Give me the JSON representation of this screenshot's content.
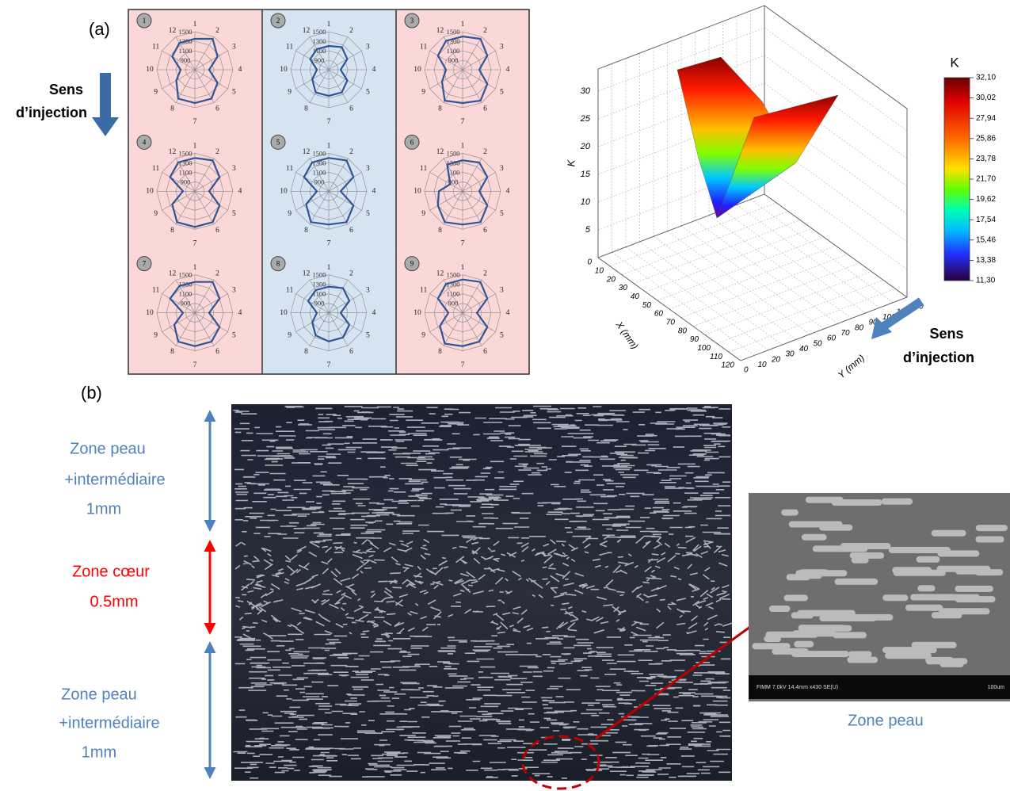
{
  "panel_a": {
    "label": "(a)",
    "injection_note": {
      "line1": "Sens",
      "line2": "d’injection"
    },
    "radar_grid": {
      "rlim": [
        700,
        1500
      ],
      "rticks": [
        900,
        1100,
        1300,
        1500
      ],
      "spoke_labels": [
        "1",
        "2",
        "3",
        "4",
        "5",
        "6",
        "7",
        "8",
        "9",
        "10",
        "11",
        "12"
      ],
      "line_color": "#2f5597",
      "cells": [
        {
          "number": "1",
          "background": "#fbd7d7",
          "values": [
            1350,
            1450,
            1250,
            1000,
            1250,
            1400,
            1400,
            1400,
            1150,
            1000,
            1250,
            1350
          ]
        },
        {
          "number": "2",
          "background": "#d6e4f2",
          "values": [
            1200,
            1250,
            1150,
            950,
            1150,
            1250,
            1250,
            1250,
            1100,
            950,
            1150,
            1200
          ]
        },
        {
          "number": "3",
          "background": "#fbd7d7",
          "values": [
            1400,
            1450,
            1300,
            1050,
            1300,
            1450,
            1400,
            1450,
            1200,
            1050,
            1300,
            1400
          ]
        },
        {
          "number": "4",
          "background": "#fbd7d7",
          "values": [
            1400,
            1450,
            1300,
            1000,
            1300,
            1450,
            1450,
            1450,
            1250,
            950,
            1300,
            1400
          ]
        },
        {
          "number": "5",
          "background": "#d6e4f2",
          "values": [
            1400,
            1450,
            1300,
            950,
            1300,
            1450,
            1400,
            1450,
            1250,
            950,
            1300,
            1400
          ]
        },
        {
          "number": "6",
          "background": "#fbd7d7",
          "values": [
            1350,
            1400,
            1300,
            1050,
            1300,
            1450,
            1400,
            1450,
            1300,
            1200,
            1000,
            1350
          ]
        },
        {
          "number": "7",
          "background": "#fbd7d7",
          "values": [
            1350,
            1450,
            1300,
            1000,
            1300,
            1400,
            1400,
            1400,
            1200,
            950,
            1300,
            1350
          ]
        },
        {
          "number": "8",
          "background": "#d6e4f2",
          "values": [
            1250,
            1300,
            1200,
            950,
            1200,
            1300,
            1300,
            1250,
            1100,
            950,
            1200,
            1250
          ]
        },
        {
          "number": "9",
          "background": "#fbd7d7",
          "values": [
            1400,
            1450,
            1300,
            1000,
            1300,
            1400,
            1400,
            1450,
            1250,
            1000,
            1300,
            1400
          ]
        }
      ]
    },
    "surface_plot": {
      "z_label": "K",
      "x_label": "X (mm)",
      "y_label": "Y (mm)",
      "xlim": [
        0,
        120
      ],
      "ylim": [
        0,
        120
      ],
      "zlim": [
        0,
        34
      ],
      "xticks": [
        0,
        10,
        20,
        30,
        40,
        50,
        60,
        70,
        80,
        90,
        100,
        110,
        120
      ],
      "yticks": [
        0,
        10,
        20,
        30,
        40,
        50,
        60,
        70,
        80,
        90,
        100,
        110,
        120
      ],
      "zticks": [
        5,
        10,
        15,
        20,
        25,
        30
      ],
      "colorbar": {
        "title": "K",
        "lim": [
          11.3,
          32.1
        ],
        "ticks": [
          {
            "value": 32.1,
            "label": "32,10"
          },
          {
            "value": 30.02,
            "label": "30,02"
          },
          {
            "value": 27.94,
            "label": "27,94"
          },
          {
            "value": 25.86,
            "label": "25,86"
          },
          {
            "value": 23.78,
            "label": "23,78"
          },
          {
            "value": 21.7,
            "label": "21,70"
          },
          {
            "value": 19.62,
            "label": "19,62"
          },
          {
            "value": 17.54,
            "label": "17,54"
          },
          {
            "value": 15.46,
            "label": "15,46"
          },
          {
            "value": 13.38,
            "label": "13,38"
          },
          {
            "value": 11.3,
            "label": "11,30"
          }
        ]
      }
    },
    "injection_note_right": {
      "line1": "Sens",
      "line2": "d’injection"
    }
  },
  "panel_b": {
    "label": "(b)",
    "zones": [
      {
        "lines": [
          "Zone peau",
          "+intermédiaire",
          "1mm"
        ]
      },
      {
        "lines": [
          "Zone cœur",
          "0.5mm"
        ]
      },
      {
        "lines": [
          "Zone peau",
          "+intermédiaire",
          "1mm"
        ]
      }
    ],
    "inset": {
      "caption": "Zone peau",
      "footer_left": "FIMM 7.0kV 14.4mm x430 SE(U)",
      "footer_right": "100um"
    }
  }
}
